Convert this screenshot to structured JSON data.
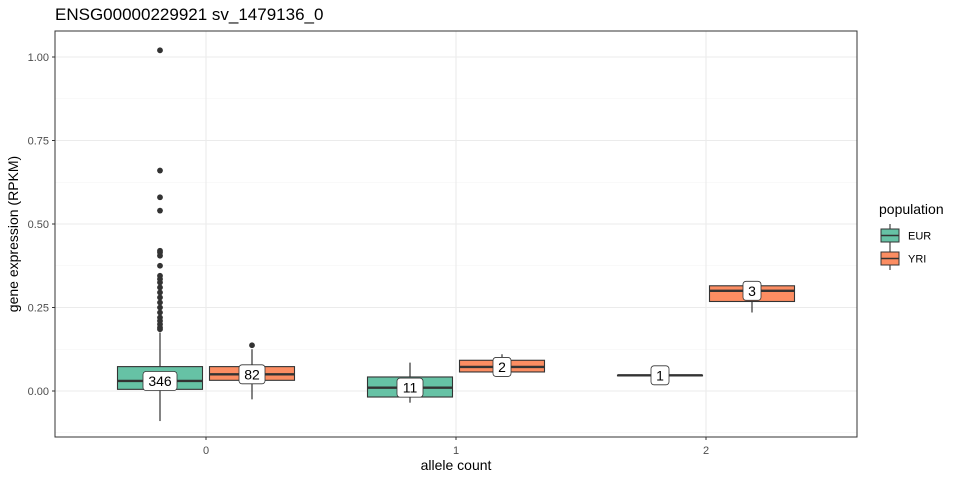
{
  "chart_data": {
    "type": "boxplot",
    "title": "ENSG00000229921 sv_1479136_0",
    "xlabel": "allele count",
    "ylabel": "gene expression (RPKM)",
    "categories": [
      "0",
      "1",
      "2"
    ],
    "ylim": [
      -0.14,
      1.05
    ],
    "yticks": [
      0.0,
      0.25,
      0.5,
      0.75,
      1.0
    ],
    "ytick_labels": [
      "0.00",
      "0.25",
      "0.50",
      "0.75",
      "1.00"
    ],
    "grid": true,
    "legend": {
      "title": "population",
      "position": "right",
      "entries": [
        {
          "label": "EUR",
          "color": "#66c2a5"
        },
        {
          "label": "YRI",
          "color": "#fc8d62"
        }
      ]
    },
    "series": [
      {
        "name": "EUR",
        "color": "#66c2a5",
        "boxes": [
          {
            "category": "0",
            "lower": -0.09,
            "q1": 0.005,
            "median": 0.03,
            "q3": 0.073,
            "upper": 0.175,
            "count": "346",
            "outliers": [
              1.02,
              0.66,
              0.58,
              0.54,
              0.42,
              0.415,
              0.405,
              0.375,
              0.345,
              0.335,
              0.325,
              0.31,
              0.295,
              0.28,
              0.265,
              0.25,
              0.235,
              0.22,
              0.21,
              0.2,
              0.19,
              0.185
            ]
          },
          {
            "category": "1",
            "lower": -0.035,
            "q1": -0.018,
            "median": 0.01,
            "q3": 0.042,
            "upper": 0.085,
            "count": "11",
            "outliers": []
          },
          {
            "category": "2",
            "lower": 0.047,
            "q1": 0.047,
            "median": 0.047,
            "q3": 0.047,
            "upper": 0.047,
            "count": "1",
            "outliers": []
          }
        ]
      },
      {
        "name": "YRI",
        "color": "#fc8d62",
        "boxes": [
          {
            "category": "0",
            "lower": -0.025,
            "q1": 0.032,
            "median": 0.05,
            "q3": 0.073,
            "upper": 0.125,
            "count": "82",
            "outliers": [
              0.137
            ]
          },
          {
            "category": "1",
            "lower": 0.045,
            "q1": 0.057,
            "median": 0.072,
            "q3": 0.092,
            "upper": 0.11,
            "count": "2",
            "outliers": []
          },
          {
            "category": "2",
            "lower": 0.235,
            "q1": 0.268,
            "median": 0.3,
            "q3": 0.315,
            "upper": 0.32,
            "count": "3",
            "outliers": []
          }
        ]
      }
    ]
  }
}
